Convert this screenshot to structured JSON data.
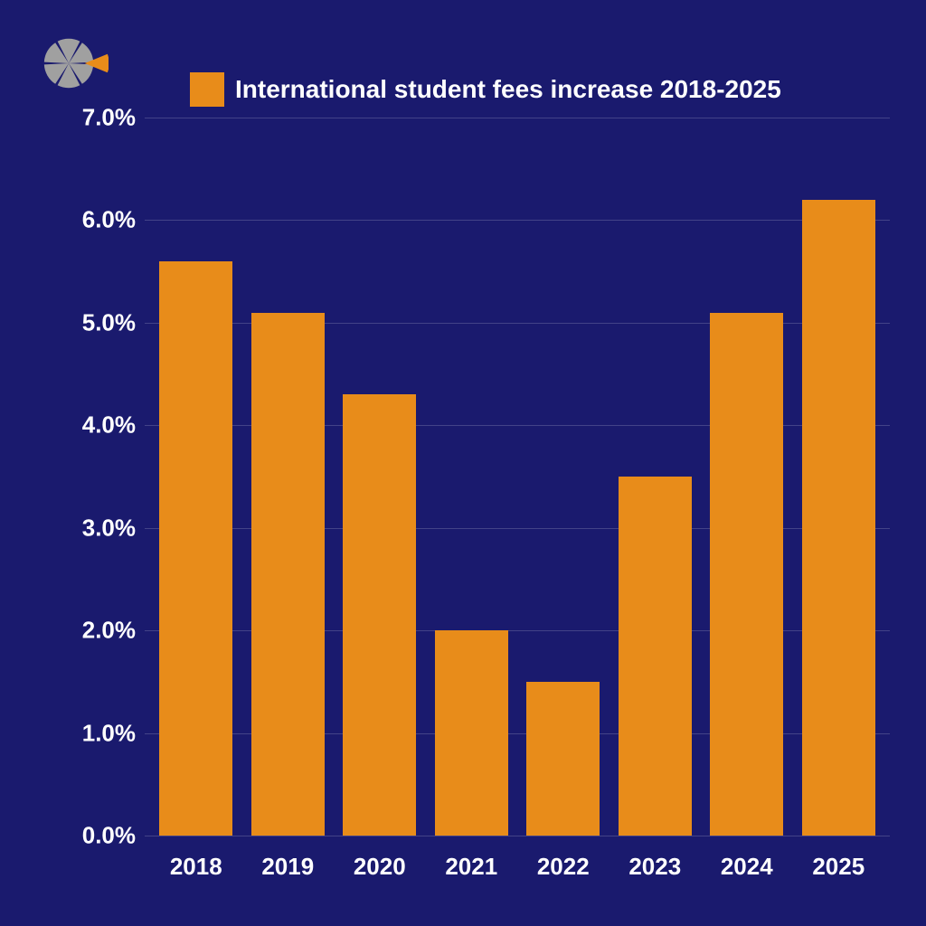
{
  "background_color": "#1a1a6e",
  "logo": {
    "wedge_color": "#a0a0a0",
    "accent_color": "#e88c1a",
    "bg_color": "#1a1a6e"
  },
  "legend": {
    "label": "International student fees increase 2018-2025",
    "swatch_color": "#e88c1a",
    "text_color": "#ffffff",
    "fontsize": 28
  },
  "chart": {
    "type": "bar",
    "categories": [
      "2018",
      "2019",
      "2020",
      "2021",
      "2022",
      "2023",
      "2024",
      "2025"
    ],
    "values": [
      5.6,
      5.1,
      4.3,
      2.0,
      1.5,
      3.5,
      5.1,
      6.2
    ],
    "bar_color": "#e88c1a",
    "ylim": [
      0.0,
      7.0
    ],
    "ytick_step": 1.0,
    "ytick_decimals": 1,
    "ytick_suffix": "%",
    "grid_color": "rgba(255,255,255,0.18)",
    "axis_text_color": "#ffffff",
    "axis_fontsize": 26,
    "bar_width": 0.8
  }
}
